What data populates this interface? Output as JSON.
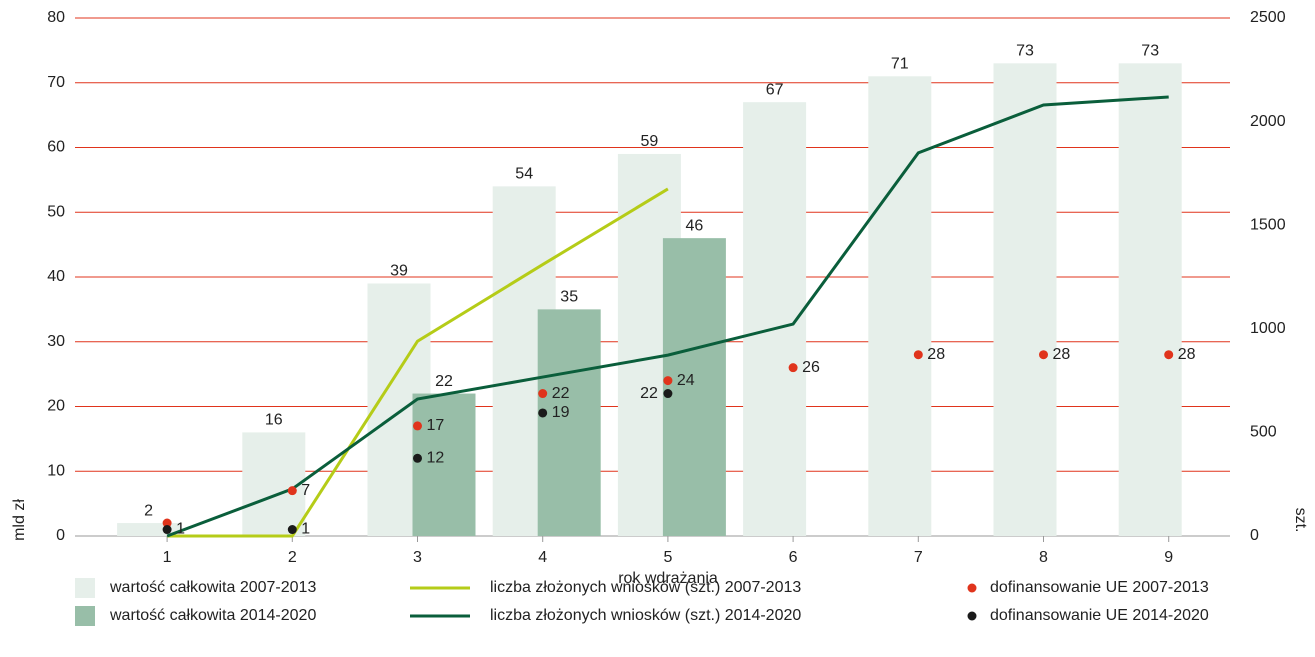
{
  "chart_data": {
    "type": "bar",
    "categories": [
      "1",
      "2",
      "3",
      "4",
      "5",
      "6",
      "7",
      "8",
      "9"
    ],
    "xlabel": "rok wdrażania",
    "ylabel": "mld zł",
    "y2label": "szt.",
    "ylim": [
      0,
      80
    ],
    "yticks": [
      0,
      10,
      20,
      30,
      40,
      50,
      60,
      70,
      80
    ],
    "y2lim": [
      0,
      2500
    ],
    "y2ticks": [
      0,
      500,
      1000,
      1500,
      2000,
      2500
    ],
    "grid": true,
    "series": [
      {
        "name": "wartość całkowita 2007-2013",
        "type": "bar",
        "color": "#e6efea",
        "values": [
          2,
          16,
          39,
          54,
          59,
          67,
          71,
          73,
          73
        ]
      },
      {
        "name": "wartość całkowita 2014-2020",
        "type": "bar",
        "color": "#98bea8",
        "values": [
          null,
          null,
          22,
          35,
          46,
          null,
          null,
          null,
          null
        ]
      },
      {
        "name": "liczba złożonych wniosków (szt.) 2007-2013",
        "type": "line",
        "axis": "y2",
        "color": "#b5cc18",
        "values": [
          0,
          0,
          940,
          1310,
          1675,
          null,
          null,
          null,
          null
        ]
      },
      {
        "name": "liczba złożonych wniosków (szt.) 2014-2020",
        "type": "line",
        "axis": "y2",
        "color": "#0a5e3b",
        "values": [
          0,
          227,
          661,
          767,
          873,
          1023,
          1849,
          2080,
          2119
        ]
      },
      {
        "name": "dofinansowanie UE 2007-2013",
        "type": "dot",
        "color": "#e0341c",
        "values": [
          2,
          7,
          17,
          22,
          24,
          26,
          28,
          28,
          28
        ],
        "value_labels": [
          null,
          "7",
          "17",
          "22",
          "24",
          "26",
          "28",
          "28",
          "28"
        ]
      },
      {
        "name": "dofinansowanie UE 2014-2020",
        "type": "dot",
        "color": "#1a1a1a",
        "values": [
          1,
          1,
          12,
          19,
          22,
          null,
          null,
          null,
          null
        ]
      }
    ]
  }
}
